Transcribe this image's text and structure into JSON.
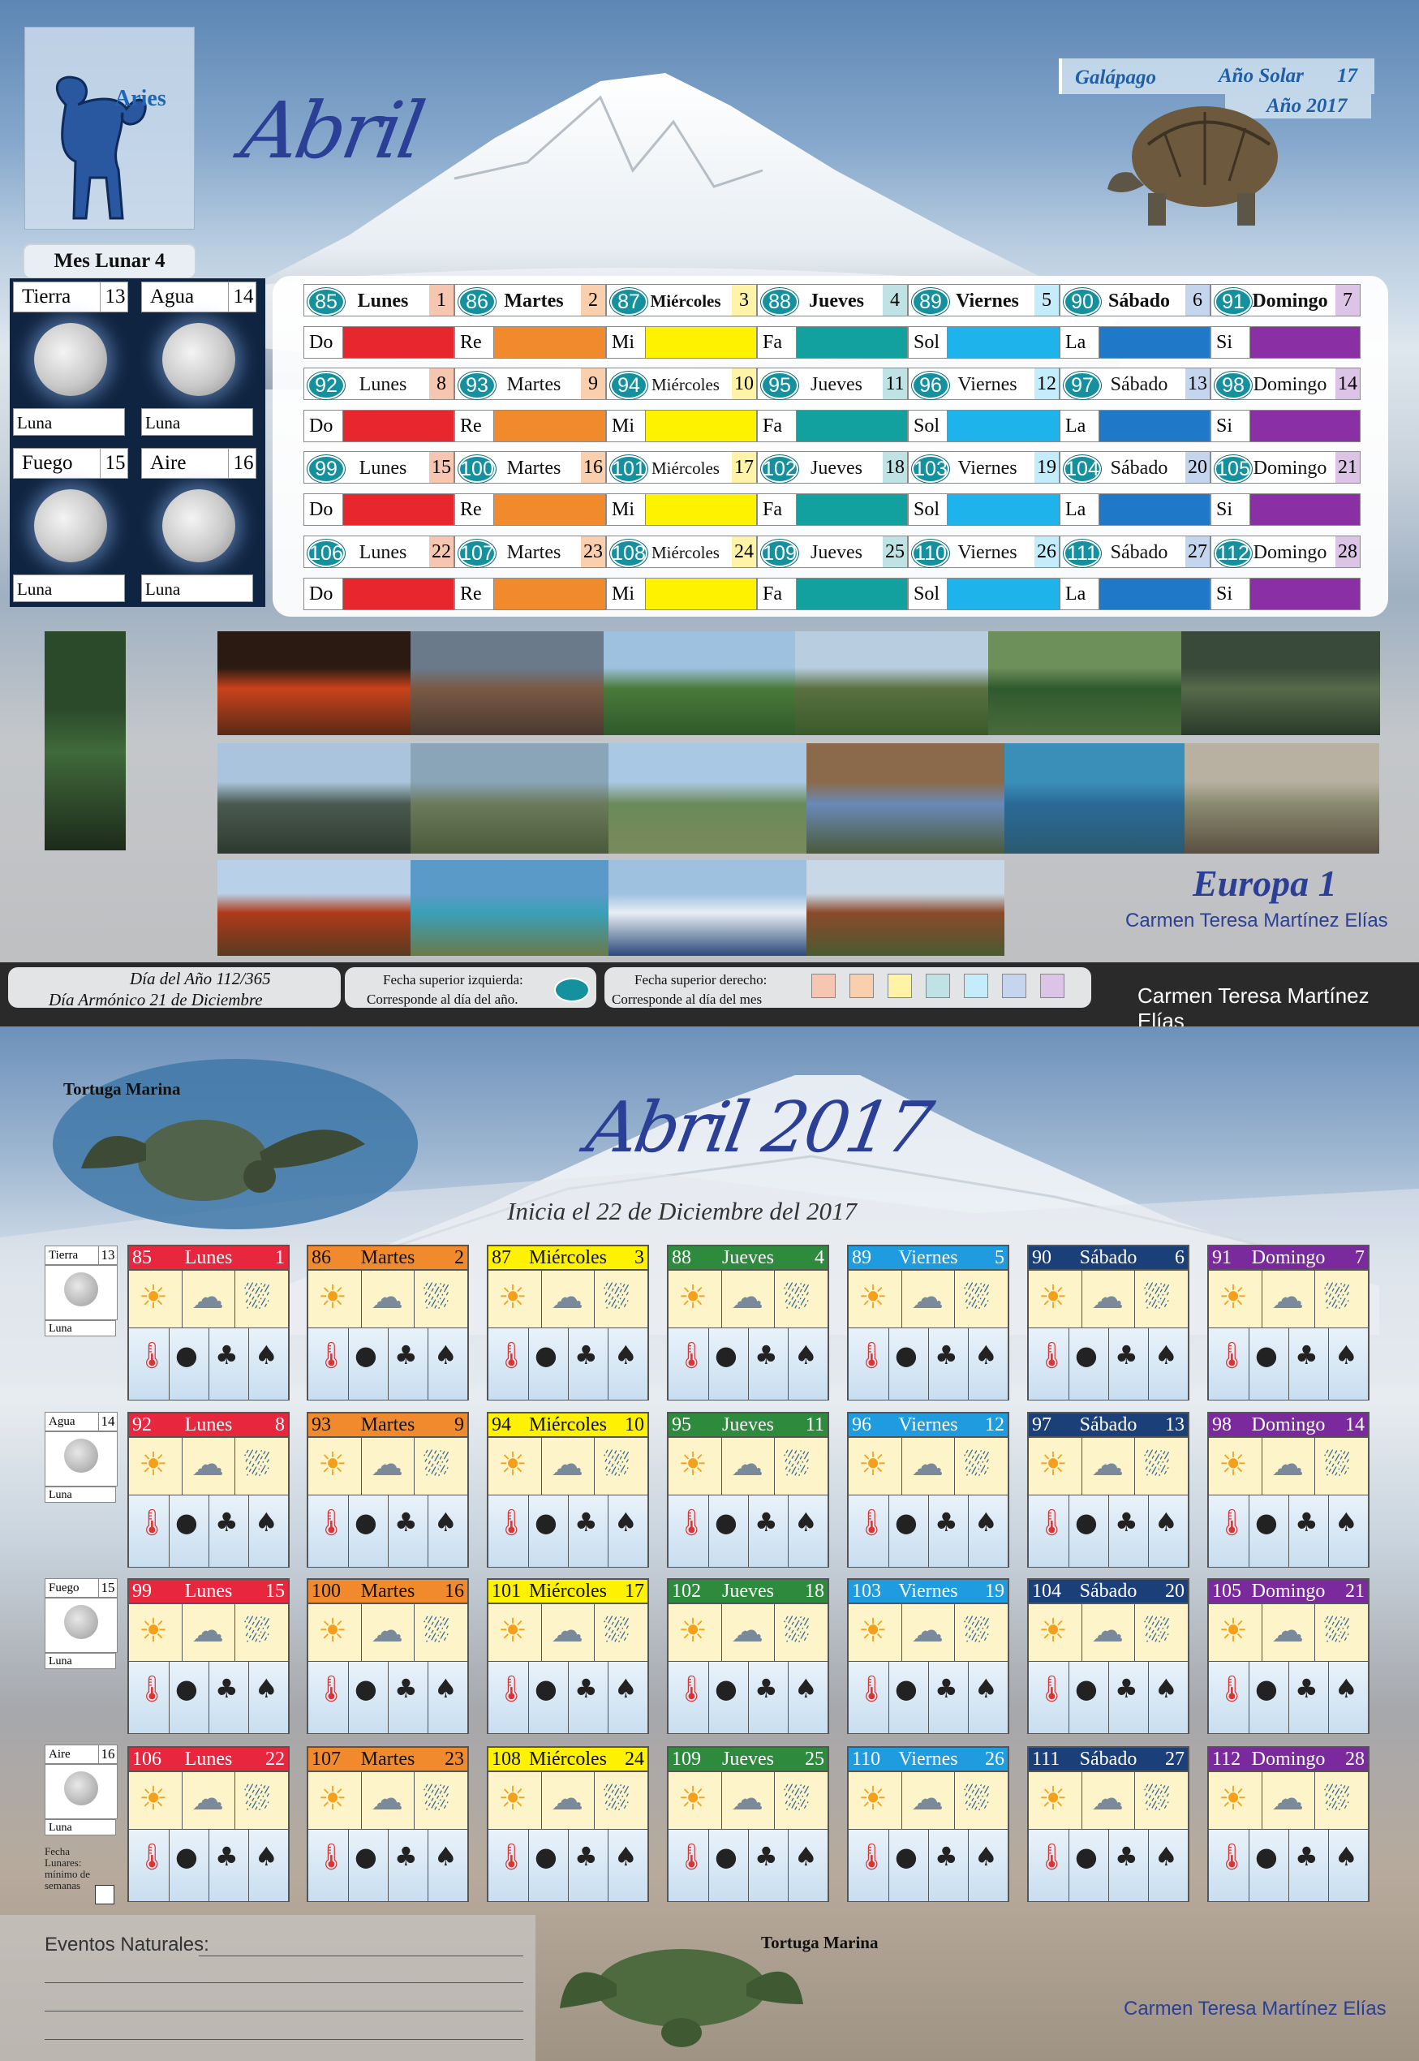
{
  "sign": {
    "name": "Aries",
    "icon": "aries-ram-icon"
  },
  "header": {
    "month": "Abril",
    "lunar_month": "Mes Lunar 4",
    "galapago": "Galápago",
    "anio_solar_label": "Año Solar",
    "anio_solar_num": "17",
    "anio": "Año 2017"
  },
  "elements": [
    {
      "name": "Tierra",
      "num": "13",
      "luna": "Luna"
    },
    {
      "name": "Agua",
      "num": "14",
      "luna": "Luna"
    },
    {
      "name": "Fuego",
      "num": "15",
      "luna": "Luna"
    },
    {
      "name": "Aire",
      "num": "16",
      "luna": "Luna"
    }
  ],
  "weeks": [
    [
      {
        "doy": "85",
        "name": "Lunes",
        "dom": "1"
      },
      {
        "doy": "86",
        "name": "Martes",
        "dom": "2"
      },
      {
        "doy": "87",
        "name": "Miércoles",
        "dom": "3"
      },
      {
        "doy": "88",
        "name": "Jueves",
        "dom": "4"
      },
      {
        "doy": "89",
        "name": "Viernes",
        "dom": "5"
      },
      {
        "doy": "90",
        "name": "Sábado",
        "dom": "6"
      },
      {
        "doy": "91",
        "name": "Domingo",
        "dom": "7"
      }
    ],
    [
      {
        "doy": "92",
        "name": "Lunes",
        "dom": "8"
      },
      {
        "doy": "93",
        "name": "Martes",
        "dom": "9"
      },
      {
        "doy": "94",
        "name": "Miércoles",
        "dom": "10"
      },
      {
        "doy": "95",
        "name": "Jueves",
        "dom": "11"
      },
      {
        "doy": "96",
        "name": "Viernes",
        "dom": "12"
      },
      {
        "doy": "97",
        "name": "Sábado",
        "dom": "13"
      },
      {
        "doy": "98",
        "name": "Domingo",
        "dom": "14"
      }
    ],
    [
      {
        "doy": "99",
        "name": "Lunes",
        "dom": "15"
      },
      {
        "doy": "100",
        "name": "Martes",
        "dom": "16"
      },
      {
        "doy": "101",
        "name": "Miércoles",
        "dom": "17"
      },
      {
        "doy": "102",
        "name": "Jueves",
        "dom": "18"
      },
      {
        "doy": "103",
        "name": "Viernes",
        "dom": "19"
      },
      {
        "doy": "104",
        "name": "Sábado",
        "dom": "20"
      },
      {
        "doy": "105",
        "name": "Domingo",
        "dom": "21"
      }
    ],
    [
      {
        "doy": "106",
        "name": "Lunes",
        "dom": "22"
      },
      {
        "doy": "107",
        "name": "Martes",
        "dom": "23"
      },
      {
        "doy": "108",
        "name": "Miércoles",
        "dom": "24"
      },
      {
        "doy": "109",
        "name": "Jueves",
        "dom": "25"
      },
      {
        "doy": "110",
        "name": "Viernes",
        "dom": "26"
      },
      {
        "doy": "111",
        "name": "Sábado",
        "dom": "27"
      },
      {
        "doy": "112",
        "name": "Domingo",
        "dom": "28"
      }
    ]
  ],
  "notes": [
    "Do",
    "Re",
    "Mi",
    "Fa",
    "Sol",
    "La",
    "Si"
  ],
  "colors": {
    "day_bars": [
      "#e8262d",
      "#f18a2d",
      "#fff200",
      "#13a19f",
      "#1fb3ec",
      "#1f78c8",
      "#8b2fa5"
    ],
    "day_tints": [
      "#f7c6b1",
      "#f9cfae",
      "#fff3a8",
      "#bfe3e4",
      "#c4ecfb",
      "#c6d5ee",
      "#dbc4e6"
    ],
    "card_heads": [
      "#e8263e",
      "#f18a2d",
      "#fff200",
      "#2e8b3e",
      "#1f9be0",
      "#1b3f78",
      "#7a2a9c"
    ],
    "card_head_text": [
      "#ffffff",
      "#111111",
      "#111111",
      "#ffffff",
      "#ffffff",
      "#ffffff",
      "#ffffff"
    ],
    "accent": "#2c3f96",
    "teal": "#14909e"
  },
  "photos": {
    "europa": "Europa 1",
    "author": "Carmen Teresa Martínez Elías"
  },
  "footer": {
    "dia_del_anio": "Día del Año 112/365",
    "dia_armonico": "Día Armónico 21 de Diciembre",
    "fecha_izq_1": "Fecha superior izquierda:",
    "fecha_izq_2": "Corresponde al día del año.",
    "fecha_der_1": "Fecha superior derecho:",
    "fecha_der_2": "Corresponde al día del mes",
    "author": "Carmen Teresa Martínez Elías"
  },
  "bottom": {
    "tortuga_1": "Tortuga Marina",
    "title": "Abril 2017",
    "subtitle": "Inicia el 22 de Diciembre del 2017",
    "fecha_lunares": "Fecha Lunares: mínimo de semanas",
    "eventos": "Eventos Naturales:",
    "tortuga_2": "Tortuga Marina",
    "author": "Carmen Teresa Martínez Elías"
  },
  "weather_icons": [
    "sun-icon",
    "cloud-icon",
    "rain-cloud-icon",
    "thermometer-icon",
    "moon-phase-icon",
    "palm-tree-icon",
    "wind-palm-icon"
  ]
}
